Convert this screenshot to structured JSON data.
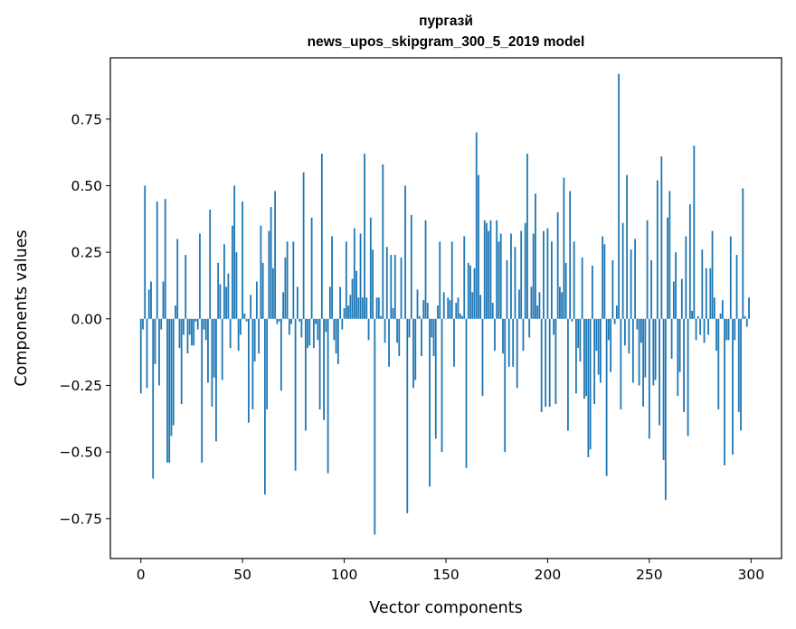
{
  "chart_data": {
    "type": "bar",
    "title_line1": "пургазй",
    "title_line2": "news_upos_skipgram_300_5_2019 model",
    "xlabel": "Vector components",
    "ylabel": "Components values",
    "xlim": [
      -15,
      315
    ],
    "ylim": [
      -0.9,
      0.98
    ],
    "x_ticks": [
      {
        "value": 0,
        "label": "0"
      },
      {
        "value": 50,
        "label": "50"
      },
      {
        "value": 100,
        "label": "100"
      },
      {
        "value": 150,
        "label": "150"
      },
      {
        "value": 200,
        "label": "200"
      },
      {
        "value": 250,
        "label": "250"
      },
      {
        "value": 300,
        "label": "300"
      }
    ],
    "y_ticks": [
      {
        "value": 0.75,
        "label": "0.75"
      },
      {
        "value": 0.5,
        "label": "0.50"
      },
      {
        "value": 0.25,
        "label": "0.25"
      },
      {
        "value": 0.0,
        "label": "0.00"
      },
      {
        "value": -0.25,
        "label": "−0.25"
      },
      {
        "value": -0.5,
        "label": "−0.50"
      },
      {
        "value": -0.75,
        "label": "−0.75"
      }
    ],
    "bar_color": "#1f77b4",
    "values": [
      -0.28,
      -0.04,
      0.5,
      -0.26,
      0.11,
      0.14,
      -0.6,
      -0.17,
      0.44,
      -0.25,
      -0.04,
      0.14,
      0.45,
      -0.54,
      -0.54,
      -0.44,
      -0.4,
      0.05,
      0.3,
      -0.11,
      -0.32,
      -0.06,
      0.24,
      -0.13,
      -0.06,
      -0.1,
      -0.1,
      -0.01,
      -0.04,
      0.32,
      -0.54,
      -0.04,
      -0.08,
      -0.24,
      0.41,
      -0.33,
      -0.22,
      -0.46,
      0.21,
      0.13,
      -0.23,
      0.28,
      0.12,
      0.17,
      -0.11,
      0.35,
      0.5,
      0.25,
      -0.12,
      -0.06,
      0.44,
      0.02,
      -0.01,
      -0.39,
      0.09,
      -0.34,
      -0.16,
      0.14,
      -0.13,
      0.35,
      0.21,
      -0.66,
      -0.34,
      0.33,
      0.42,
      0.19,
      0.48,
      -0.02,
      -0.01,
      -0.27,
      0.1,
      0.23,
      0.29,
      -0.06,
      -0.02,
      0.29,
      -0.57,
      0.12,
      -0.01,
      -0.07,
      0.55,
      -0.42,
      -0.11,
      -0.1,
      0.38,
      -0.11,
      -0.02,
      -0.08,
      -0.34,
      0.62,
      -0.38,
      -0.05,
      -0.58,
      0.12,
      0.31,
      -0.08,
      -0.13,
      -0.17,
      0.12,
      -0.04,
      0.04,
      0.29,
      0.05,
      0.09,
      0.15,
      0.34,
      0.18,
      0.08,
      0.32,
      0.08,
      0.62,
      0.08,
      -0.08,
      0.38,
      0.26,
      -0.81,
      0.08,
      0.08,
      0.01,
      0.58,
      -0.09,
      0.27,
      -0.18,
      0.24,
      0.04,
      0.24,
      -0.09,
      -0.14,
      0.23,
      0.0,
      0.5,
      -0.73,
      -0.07,
      0.39,
      -0.26,
      -0.23,
      0.11,
      0.01,
      -0.14,
      0.07,
      0.37,
      0.06,
      -0.63,
      -0.07,
      -0.14,
      -0.45,
      0.05,
      0.29,
      -0.5,
      0.1,
      0.0,
      0.08,
      0.07,
      0.29,
      -0.18,
      0.06,
      0.08,
      0.02,
      0.01,
      0.31,
      -0.56,
      0.21,
      0.2,
      0.1,
      0.19,
      0.7,
      0.54,
      0.09,
      -0.29,
      0.37,
      0.36,
      0.33,
      0.37,
      0.06,
      -0.12,
      0.37,
      0.29,
      0.32,
      -0.13,
      -0.5,
      0.22,
      -0.18,
      0.32,
      -0.18,
      0.27,
      -0.26,
      0.11,
      0.33,
      -0.12,
      0.36,
      0.62,
      -0.07,
      0.12,
      0.32,
      0.47,
      0.05,
      0.1,
      -0.35,
      0.33,
      -0.33,
      0.34,
      -0.33,
      0.29,
      -0.06,
      -0.32,
      0.4,
      0.12,
      0.1,
      0.53,
      0.21,
      -0.42,
      0.48,
      -0.01,
      0.29,
      -0.28,
      -0.11,
      -0.16,
      0.23,
      -0.3,
      -0.29,
      -0.52,
      -0.49,
      0.2,
      -0.32,
      -0.12,
      -0.21,
      -0.24,
      0.31,
      0.28,
      -0.59,
      -0.08,
      -0.2,
      0.22,
      -0.02,
      0.05,
      0.92,
      -0.34,
      0.36,
      -0.1,
      0.54,
      -0.13,
      0.26,
      -0.24,
      0.3,
      -0.04,
      -0.25,
      -0.09,
      -0.33,
      -0.22,
      0.37,
      -0.45,
      0.22,
      -0.25,
      -0.23,
      0.52,
      -0.4,
      0.61,
      -0.53,
      -0.68,
      0.38,
      0.48,
      -0.15,
      0.14,
      0.25,
      -0.29,
      -0.2,
      0.15,
      -0.35,
      0.31,
      -0.44,
      0.43,
      0.03,
      0.65,
      -0.08,
      0.01,
      -0.06,
      0.26,
      -0.09,
      0.19,
      -0.06,
      0.19,
      0.33,
      0.08,
      -0.12,
      -0.34,
      0.02,
      0.07,
      -0.55,
      -0.08,
      -0.08,
      0.31,
      -0.51,
      -0.08,
      0.24,
      -0.35,
      -0.42,
      0.49,
      0.01,
      -0.03,
      0.08
    ]
  }
}
